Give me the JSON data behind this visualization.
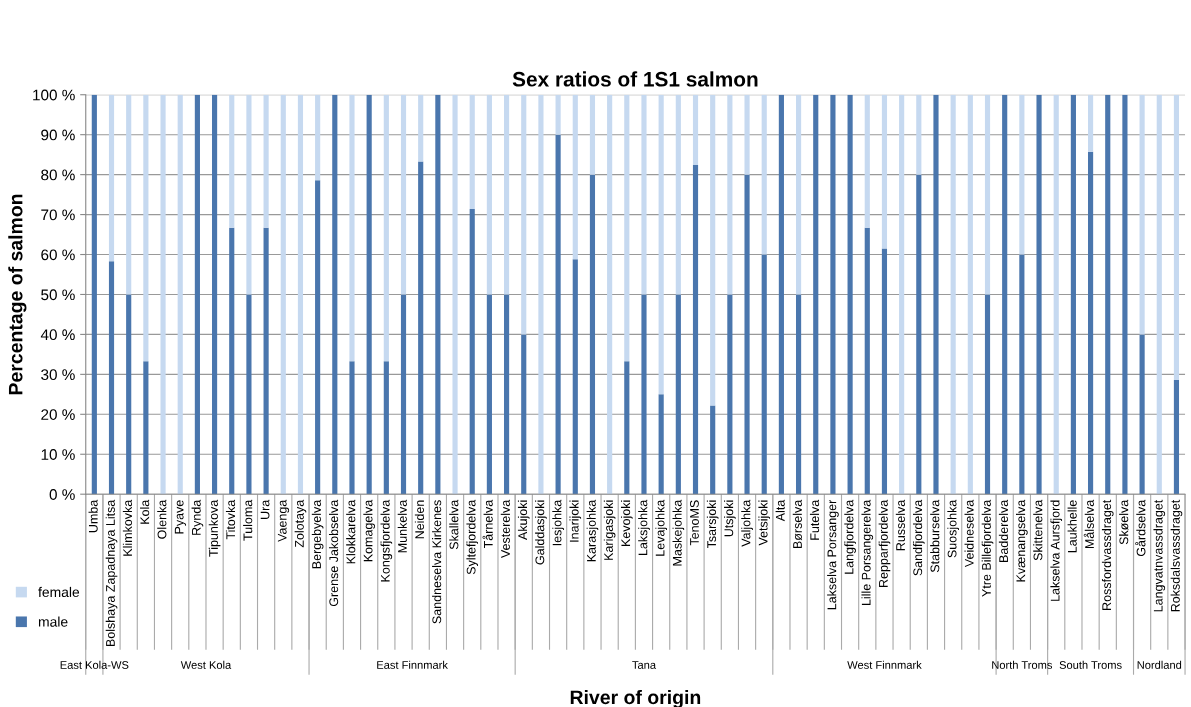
{
  "chart_data": {
    "type": "bar",
    "title": "Sex ratios of 1S1 salmon",
    "xlabel": "River of origin",
    "ylabel": "Percentage of salmon",
    "categories": [
      "Umba",
      "Bolshaya Zapadnaya Litsa",
      "Klimkovka",
      "Kola",
      "Olenka",
      "Pyave",
      "Rynda",
      "Tipunkova",
      "Titovka",
      "Tuloma",
      "Ura",
      "Vaenga",
      "Zolotaya",
      "Bergebyelva",
      "Grense Jakobselva",
      "Klokkarelva",
      "Komagelva",
      "Kongsfjordelva",
      "Munkelva",
      "Neiden",
      "Sandneselva Kirkenes",
      "Skallelva",
      "Syltefjordelva",
      "Tårnelva",
      "Vesterelva",
      "Akujoki",
      "Galddasjoki",
      "Iesjohka",
      "Inarijoki",
      "Karasjohka",
      "Karigasjoki",
      "Kevojoki",
      "Laksjohka",
      "Levajohka",
      "Maskejohka",
      "TenoMS",
      "Tsarsjoki",
      "Utsjoki",
      "Valjohka",
      "Vetsijoki",
      "Alta",
      "Børselva",
      "Futelva",
      "Lakselva Porsanger",
      "Langfjordelva",
      "Lille Porsangerelva",
      "Repparfjordelva",
      "Russelva",
      "Sandfjordelva",
      "Stabburselva",
      "Suosjohka",
      "Veidneselva",
      "Ytre Billefjordelva",
      "Badderelva",
      "Kvænangselva",
      "Skittenelva",
      "Lakselva Aursfjord",
      "Laukhelle",
      "Målselva",
      "Rossfordvassdraget",
      "Skøelva",
      "Gårdselva",
      "Langvatnvassdraget",
      "Roksdalsvassdraget"
    ],
    "series": [
      {
        "name": "male",
        "color": "#4a76ad",
        "values": [
          100,
          58.3,
          50,
          33.3,
          0,
          0,
          100,
          100,
          66.7,
          50,
          66.7,
          0,
          0,
          78.6,
          100,
          33.3,
          100,
          33.3,
          50,
          83.3,
          100,
          0,
          71.4,
          50,
          50,
          40,
          0,
          90,
          58.8,
          80,
          0,
          33.3,
          50,
          25,
          50,
          82.4,
          22.2,
          50,
          80,
          60,
          100,
          50,
          100,
          100,
          100,
          66.7,
          61.5,
          0,
          80,
          100,
          0,
          0,
          50,
          100,
          60,
          100,
          0,
          100,
          85.7,
          100,
          100,
          40,
          0,
          28.6
        ]
      },
      {
        "name": "female",
        "color": "#c6d9f0",
        "values": [
          0,
          41.7,
          50,
          66.7,
          100,
          100,
          0,
          0,
          33.3,
          50,
          33.3,
          100,
          100,
          21.4,
          0,
          66.7,
          0,
          66.7,
          50,
          16.7,
          0,
          100,
          28.6,
          50,
          50,
          60,
          100,
          10,
          41.2,
          20,
          100,
          66.7,
          50,
          75,
          50,
          17.6,
          77.8,
          50,
          20,
          40,
          0,
          50,
          0,
          0,
          0,
          33.3,
          38.5,
          100,
          20,
          0,
          100,
          100,
          50,
          0,
          40,
          0,
          100,
          0,
          14.3,
          0,
          0,
          60,
          100,
          71.4
        ]
      }
    ],
    "stacked": true,
    "ylim": [
      0,
      100
    ],
    "yticks": [
      {
        "value": 0,
        "label": "0 %"
      },
      {
        "value": 10,
        "label": "10 %"
      },
      {
        "value": 20,
        "label": "20 %"
      },
      {
        "value": 30,
        "label": "30 %"
      },
      {
        "value": 40,
        "label": "40 %"
      },
      {
        "value": 50,
        "label": "50 %"
      },
      {
        "value": 60,
        "label": "60 %"
      },
      {
        "value": 70,
        "label": "70 %"
      },
      {
        "value": 80,
        "label": "80 %"
      },
      {
        "value": 90,
        "label": "90 %"
      },
      {
        "value": 100,
        "label": "100 %"
      }
    ],
    "grid": "y",
    "legend": "bottom left",
    "annotations": [
      "East Kola-WS",
      "West Kola",
      "East Finnmark",
      "Tana",
      "West Finnmark",
      "North Troms",
      "South Troms",
      "Nordland"
    ]
  }
}
